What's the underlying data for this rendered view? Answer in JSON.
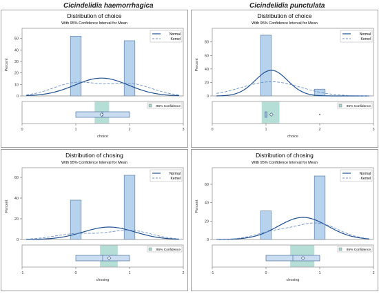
{
  "species": {
    "left": "Cicindelidia haemorrhagica",
    "right": "Cicindelidia punctulata"
  },
  "chart_data": [
    {
      "type": "bar",
      "title": "Distribution of choice",
      "subtitle": "With 95% Confidence Interval for Mean",
      "xlabel": "choice",
      "ylabel": "Percent",
      "xlim": [
        0,
        3
      ],
      "ylim": [
        0,
        54
      ],
      "xticks": [
        "0",
        "1",
        "2",
        "3"
      ],
      "yticks": [
        "0",
        "10",
        "20",
        "30",
        "40",
        "50"
      ],
      "bar_width": 0.2,
      "bars": [
        {
          "x": 1,
          "value": 52
        },
        {
          "x": 2,
          "value": 48
        }
      ],
      "normal": {
        "mean": 1.48,
        "sd": 0.5,
        "peak": 15.5
      },
      "kernel": {
        "modes": [
          {
            "mean": 1.0,
            "sd": 0.42
          },
          {
            "mean": 2.0,
            "sd": 0.42
          }
        ],
        "weights": [
          0.52,
          0.48
        ],
        "peak": 12
      },
      "legend": [
        "Normal",
        "Kernel"
      ],
      "ci_legend": "95% Confidence",
      "box": {
        "q1": 1,
        "q3": 2,
        "mean": 1.48,
        "ci": [
          1.35,
          1.62
        ]
      },
      "outliers": []
    },
    {
      "type": "bar",
      "title": "Distribution of choice",
      "subtitle": "With 95% Confidence Interval for Mean",
      "xlabel": "choice",
      "ylabel": "Percent",
      "xlim": [
        0,
        3
      ],
      "ylim": [
        0,
        92
      ],
      "xticks": [
        "0",
        "1",
        "2",
        "3"
      ],
      "yticks": [
        "0",
        "20",
        "40",
        "60",
        "80"
      ],
      "bar_width": 0.2,
      "bars": [
        {
          "x": 1,
          "value": 90
        },
        {
          "x": 2,
          "value": 10
        }
      ],
      "normal": {
        "mean": 1.1,
        "sd": 0.3,
        "peak": 38
      },
      "kernel": {
        "modes": [
          {
            "mean": 1.1,
            "sd": 0.55
          }
        ],
        "weights": [
          1
        ],
        "peak": 21
      },
      "legend": [
        "Normal",
        "Kernel"
      ],
      "ci_legend": "95% Confidence",
      "box": {
        "q1": 0.98,
        "q3": 1.02,
        "mean": 1.1,
        "ci": [
          0.92,
          1.25
        ]
      },
      "outliers": [
        2
      ]
    },
    {
      "type": "bar",
      "title": "Distribution of chosing",
      "subtitle": "With 95% Confidence Interval for Mean",
      "xlabel": "chosing",
      "ylabel": "Percent",
      "xlim": [
        -1,
        2
      ],
      "ylim": [
        0,
        64
      ],
      "xticks": [
        "-1",
        "0",
        "1",
        "2"
      ],
      "yticks": [
        "0",
        "20",
        "40",
        "60"
      ],
      "bar_width": 0.2,
      "bars": [
        {
          "x": 0,
          "value": 38
        },
        {
          "x": 1,
          "value": 62
        }
      ],
      "normal": {
        "mean": 0.62,
        "sd": 0.48,
        "peak": 12
      },
      "kernel": {
        "modes": [
          {
            "mean": 0.0,
            "sd": 0.4
          },
          {
            "mean": 1.0,
            "sd": 0.4
          }
        ],
        "weights": [
          0.38,
          0.62
        ],
        "peak": 9
      },
      "legend": [
        "Normal",
        "Kernel"
      ],
      "ci_legend": "95% Confidence",
      "box": {
        "q1": 0,
        "q3": 1,
        "mean": 0.62,
        "ci": [
          0.45,
          0.78
        ]
      },
      "outliers": []
    },
    {
      "type": "bar",
      "title": "Distribution of chosing",
      "subtitle": "With 95% Confidence Interval for Mean",
      "xlabel": "chosing",
      "ylabel": "Percent",
      "xlim": [
        -1,
        2
      ],
      "ylim": [
        0,
        72
      ],
      "xticks": [
        "-1",
        "0",
        "1",
        "2"
      ],
      "yticks": [
        "0",
        "20",
        "40",
        "60"
      ],
      "bar_width": 0.2,
      "bars": [
        {
          "x": 0,
          "value": 31
        },
        {
          "x": 1,
          "value": 69
        }
      ],
      "normal": {
        "mean": 0.69,
        "sd": 0.46,
        "peak": 24
      },
      "kernel": {
        "modes": [
          {
            "mean": 0.15,
            "sd": 0.35
          },
          {
            "mean": 0.95,
            "sd": 0.4
          }
        ],
        "weights": [
          0.31,
          0.69
        ],
        "peak": 18
      },
      "legend": [
        "Normal",
        "Kernel"
      ],
      "ci_legend": "95% Confidence",
      "box": {
        "q1": 0,
        "q3": 1,
        "mean": 0.69,
        "ci": [
          0.45,
          0.9
        ]
      },
      "outliers": []
    }
  ]
}
